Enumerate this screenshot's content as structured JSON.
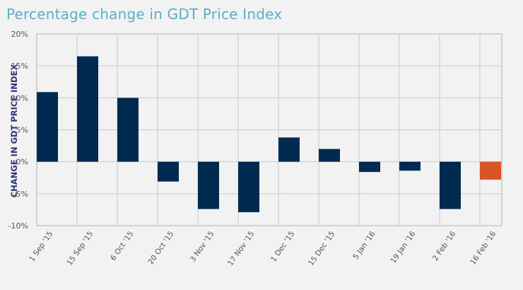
{
  "title": "Percentage change in GDT Price Index",
  "chart_data": {
    "type": "bar",
    "title": "Percentage change in GDT Price Index",
    "xlabel": "",
    "ylabel": "CHANGE IN GDT PRICE INDEX",
    "ylim": [
      -10,
      20
    ],
    "yticks": [
      20,
      15,
      10,
      5,
      0,
      -5,
      -10
    ],
    "ytick_labels": [
      "20%",
      "15%",
      "10%",
      "5%",
      "0%",
      "-5%",
      "-10%"
    ],
    "grid": true,
    "categories": [
      "1 Sep '15",
      "15 Sep '15",
      "6 Oct '15",
      "20 Oct '15",
      "3 Nov '15",
      "17 Nov '15",
      "1 Dec '15",
      "15 Dec '15",
      "5 Jan '16",
      "19 Jan '16",
      "2 Feb '16",
      "16 Feb '16"
    ],
    "values": [
      10.9,
      16.5,
      10.0,
      -3.1,
      -7.4,
      -7.9,
      3.8,
      2.0,
      -1.6,
      -1.4,
      -7.4,
      -2.8
    ],
    "colors": [
      "#002a50",
      "#002a50",
      "#002a50",
      "#002a50",
      "#002a50",
      "#002a50",
      "#002a50",
      "#002a50",
      "#002a50",
      "#002a50",
      "#002a50",
      "#d85327"
    ],
    "highlight_color": "#d85327",
    "bar_color": "#002a50"
  }
}
